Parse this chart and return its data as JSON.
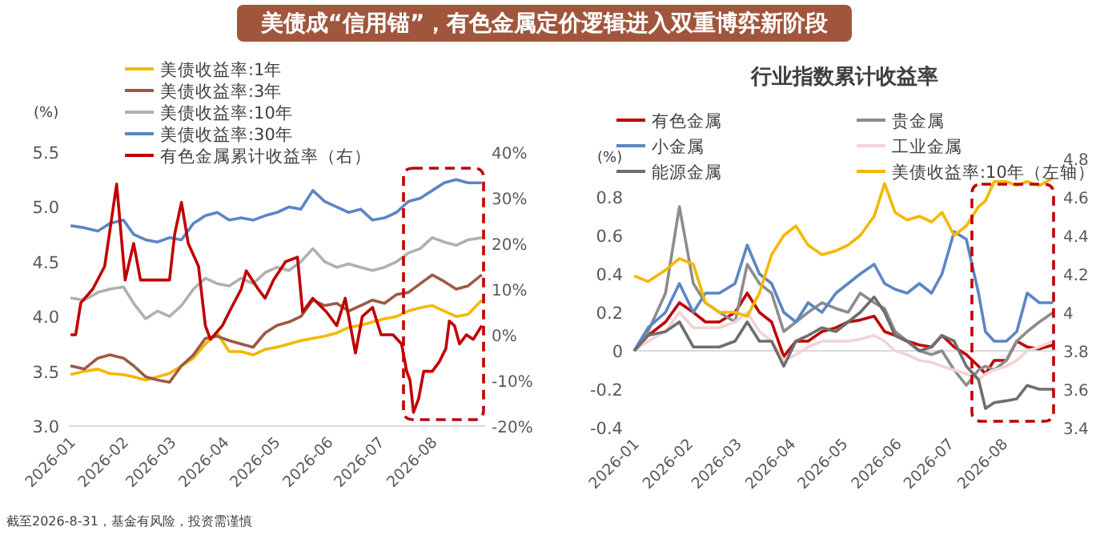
{
  "chart_data": [
    {
      "type": "line",
      "title": "美债成“信用锚”，有色金属定价逻辑进入双重博弈新阶段",
      "ylabel": "(%)",
      "legend": "top",
      "x": [
        "2026-01-02",
        "2026-01-10",
        "2026-01-18",
        "2026-01-25",
        "2026-02-02",
        "2026-02-08",
        "2026-02-15",
        "2026-02-22",
        "2026-03-01",
        "2026-03-08",
        "2026-03-15",
        "2026-03-22",
        "2026-03-29",
        "2026-04-05",
        "2026-04-12",
        "2026-04-19",
        "2026-04-26",
        "2026-05-03",
        "2026-05-10",
        "2026-05-17",
        "2026-05-24",
        "2026-05-31",
        "2026-06-07",
        "2026-06-14",
        "2026-06-21",
        "2026-06-28",
        "2026-07-05",
        "2026-07-12",
        "2026-07-19",
        "2026-07-26",
        "2026-08-02",
        "2026-08-09",
        "2026-08-16",
        "2026-08-23",
        "2026-08-31"
      ],
      "xlim": [
        "2026-01-01",
        "2026-09-02"
      ],
      "xticks": [
        "2026-01",
        "2026-02",
        "2026-03",
        "2026-04",
        "2026-05",
        "2026-06",
        "2026-07",
        "2026-08"
      ],
      "ylim": [
        3.0,
        5.5
      ],
      "yticks": [
        {
          "value": 3.0,
          "label": "3.0"
        },
        {
          "value": 3.5,
          "label": "3.5"
        },
        {
          "value": 4.0,
          "label": "4.0"
        },
        {
          "value": 4.5,
          "label": "4.5"
        },
        {
          "value": 5.0,
          "label": "5.0"
        },
        {
          "value": 5.5,
          "label": "5.5"
        }
      ],
      "y2lim": [
        -20,
        40
      ],
      "y2ticks": [
        {
          "value": -20,
          "label": "-20%"
        },
        {
          "value": -10,
          "label": "-10%"
        },
        {
          "value": 0,
          "label": "0%"
        },
        {
          "value": 10,
          "label": "10%"
        },
        {
          "value": 20,
          "label": "20%"
        },
        {
          "value": 30,
          "label": "30%"
        },
        {
          "value": 40,
          "label": "40%"
        }
      ],
      "series": [
        {
          "name": "美债收益率:1年",
          "color": "#f5b700",
          "values": [
            3.47,
            3.5,
            3.52,
            3.48,
            3.47,
            3.45,
            3.42,
            3.45,
            3.48,
            3.55,
            3.62,
            3.75,
            3.85,
            3.68,
            3.68,
            3.65,
            3.7,
            3.72,
            3.75,
            3.78,
            3.8,
            3.82,
            3.85,
            3.9,
            3.92,
            3.95,
            3.98,
            4.0,
            4.05,
            4.08,
            4.1,
            4.05,
            4.0,
            4.02,
            4.15
          ]
        },
        {
          "name": "美债收益率:3年",
          "color": "#9c5a45",
          "values": [
            3.55,
            3.52,
            3.62,
            3.65,
            3.62,
            3.55,
            3.45,
            3.42,
            3.4,
            3.55,
            3.65,
            3.8,
            3.82,
            3.78,
            3.75,
            3.72,
            3.85,
            3.92,
            3.95,
            4.0,
            4.15,
            4.1,
            4.12,
            4.05,
            4.1,
            4.15,
            4.12,
            4.2,
            4.22,
            4.3,
            4.38,
            4.32,
            4.25,
            4.28,
            4.38
          ]
        },
        {
          "name": "美债收益率:10年",
          "color": "#b0b0b0",
          "values": [
            4.17,
            4.15,
            4.22,
            4.25,
            4.27,
            4.12,
            3.98,
            4.05,
            4.0,
            4.1,
            4.25,
            4.35,
            4.3,
            4.28,
            4.35,
            4.3,
            4.4,
            4.45,
            4.42,
            4.5,
            4.62,
            4.5,
            4.45,
            4.48,
            4.45,
            4.42,
            4.45,
            4.5,
            4.58,
            4.62,
            4.72,
            4.68,
            4.65,
            4.7,
            4.72
          ]
        },
        {
          "name": "美债收益率:30年",
          "color": "#5b86c5",
          "values": [
            4.83,
            4.81,
            4.78,
            4.85,
            4.88,
            4.75,
            4.7,
            4.68,
            4.72,
            4.7,
            4.85,
            4.92,
            4.95,
            4.88,
            4.9,
            4.88,
            4.92,
            4.95,
            5.0,
            4.98,
            5.15,
            5.05,
            5.0,
            4.95,
            4.98,
            4.88,
            4.9,
            4.95,
            5.05,
            5.08,
            5.15,
            5.22,
            5.25,
            5.22,
            5.22
          ]
        },
        {
          "name": "有色金属累计收益率（右）",
          "color": "#c00000",
          "axis": "y2",
          "x": [
            "2026-01-02",
            "2026-01-05",
            "2026-01-08",
            "2026-01-15",
            "2026-01-22",
            "2026-01-29",
            "2026-02-03",
            "2026-02-08",
            "2026-02-12",
            "2026-02-20",
            "2026-03-01",
            "2026-03-04",
            "2026-03-08",
            "2026-03-12",
            "2026-03-18",
            "2026-03-22",
            "2026-03-25",
            "2026-04-01",
            "2026-04-05",
            "2026-04-12",
            "2026-04-15",
            "2026-04-22",
            "2026-04-26",
            "2026-05-01",
            "2026-05-08",
            "2026-05-15",
            "2026-05-18",
            "2026-05-24",
            "2026-06-01",
            "2026-06-07",
            "2026-06-12",
            "2026-06-18",
            "2026-06-22",
            "2026-06-28",
            "2026-07-03",
            "2026-07-10",
            "2026-07-15",
            "2026-07-18",
            "2026-07-20",
            "2026-07-22",
            "2026-07-25",
            "2026-07-28",
            "2026-08-02",
            "2026-08-06",
            "2026-08-10",
            "2026-08-12",
            "2026-08-15",
            "2026-08-18",
            "2026-08-22",
            "2026-08-26",
            "2026-08-31"
          ],
          "values": [
            0,
            0,
            7,
            10,
            15,
            33,
            12,
            20,
            12,
            12,
            12,
            22,
            29,
            20,
            15,
            2,
            -1,
            2,
            5,
            10,
            14,
            10,
            8,
            12,
            16,
            17,
            5,
            8,
            5,
            2,
            8,
            -4,
            4,
            6,
            0,
            0,
            -2,
            -8,
            -10,
            -17,
            -14,
            -8,
            -8,
            -6,
            -3,
            3,
            2,
            -2,
            0,
            -1,
            2
          ]
        }
      ],
      "annotations": [
        "截至2026-8-31，基金有风险，投资需谨慎"
      ]
    },
    {
      "type": "line",
      "title": "行业指数累计收益率",
      "ylabel": "(%)",
      "legend": "top",
      "x": [
        "2026-01-02",
        "2026-01-10",
        "2026-01-20",
        "2026-01-28",
        "2026-02-05",
        "2026-02-12",
        "2026-02-20",
        "2026-03-01",
        "2026-03-08",
        "2026-03-15",
        "2026-03-22",
        "2026-03-29",
        "2026-04-05",
        "2026-04-12",
        "2026-04-20",
        "2026-04-28",
        "2026-05-05",
        "2026-05-12",
        "2026-05-20",
        "2026-05-26",
        "2026-06-01",
        "2026-06-08",
        "2026-06-15",
        "2026-06-22",
        "2026-06-28",
        "2026-07-05",
        "2026-07-12",
        "2026-07-19",
        "2026-07-23",
        "2026-07-28",
        "2026-08-04",
        "2026-08-10",
        "2026-08-16",
        "2026-08-23",
        "2026-08-31"
      ],
      "xlim": [
        "2026-01-01",
        "2026-09-02"
      ],
      "xticks": [
        "2026-01",
        "2026-02",
        "2026-03",
        "2026-04",
        "2026-05",
        "2026-06",
        "2026-07",
        "2026-08"
      ],
      "ylim": [
        -0.4,
        0.8
      ],
      "yticks": [
        -0.4,
        -0.2,
        0,
        0.2,
        0.4,
        0.6,
        0.8
      ],
      "y2lim": [
        3.4,
        4.8
      ],
      "y2ticks": [
        3.4,
        3.6,
        3.8,
        4.0,
        4.2,
        4.4,
        4.6,
        4.8
      ],
      "series": [
        {
          "name": "有色金属",
          "color": "#c00000",
          "values": [
            0,
            0.08,
            0.15,
            0.25,
            0.2,
            0.15,
            0.15,
            0.2,
            0.3,
            0.2,
            0.15,
            -0.03,
            0.05,
            0.05,
            0.1,
            0.12,
            0.15,
            0.16,
            0.18,
            0.1,
            0.08,
            0.05,
            0.03,
            0.02,
            0.08,
            0.02,
            -0.02,
            -0.08,
            -0.12,
            -0.05,
            -0.05,
            0.05,
            0.02,
            0.01,
            0.03
          ]
        },
        {
          "name": "贵金属",
          "color": "#8c8c8c",
          "values": [
            0,
            0.1,
            0.3,
            0.75,
            0.35,
            0.25,
            0.2,
            0.15,
            0.45,
            0.35,
            0.3,
            0.1,
            0.15,
            0.2,
            0.25,
            0.22,
            0.2,
            0.3,
            0.25,
            0.22,
            0.1,
            0.05,
            0.0,
            -0.02,
            0.0,
            -0.1,
            -0.18,
            -0.1,
            -0.08,
            -0.1,
            -0.05,
            0.05,
            0.1,
            0.15,
            0.2
          ]
        },
        {
          "name": "小金属",
          "color": "#5b86c5",
          "values": [
            0,
            0.12,
            0.2,
            0.35,
            0.2,
            0.3,
            0.3,
            0.35,
            0.55,
            0.4,
            0.35,
            0.2,
            0.15,
            0.25,
            0.2,
            0.3,
            0.35,
            0.4,
            0.45,
            0.35,
            0.32,
            0.3,
            0.35,
            0.3,
            0.4,
            0.62,
            0.58,
            0.3,
            0.1,
            0.05,
            0.05,
            0.1,
            0.3,
            0.25,
            0.25
          ]
        },
        {
          "name": "工业金属",
          "color": "#f2d4d4",
          "values": [
            0,
            0.05,
            0.1,
            0.2,
            0.12,
            0.12,
            0.12,
            0.15,
            0.2,
            0.1,
            0.05,
            -0.05,
            -0.02,
            0.02,
            0.05,
            0.05,
            0.05,
            0.06,
            0.08,
            0.05,
            0.0,
            -0.02,
            -0.05,
            -0.06,
            -0.08,
            -0.1,
            -0.12,
            -0.15,
            -0.12,
            -0.1,
            -0.08,
            -0.05,
            0.0,
            0.02,
            0.05
          ]
        },
        {
          "name": "能源金属",
          "color": "#6e6e6e",
          "values": [
            0,
            0.08,
            0.1,
            0.15,
            0.02,
            0.02,
            0.02,
            0.05,
            0.15,
            0.05,
            0.05,
            -0.08,
            0.05,
            0.08,
            0.12,
            0.1,
            0.15,
            0.2,
            0.28,
            0.2,
            0.08,
            0.05,
            0.0,
            0.02,
            0.08,
            0.05,
            -0.08,
            -0.15,
            -0.3,
            -0.27,
            -0.26,
            -0.25,
            -0.18,
            -0.2,
            -0.2
          ]
        },
        {
          "name": "美债收益率:10年（左轴）",
          "color": "#f5b700",
          "axis": "y2",
          "values": [
            4.19,
            4.16,
            4.22,
            4.28,
            4.25,
            4.05,
            4.0,
            4.0,
            3.98,
            4.1,
            4.3,
            4.4,
            4.45,
            4.35,
            4.3,
            4.32,
            4.35,
            4.4,
            4.5,
            4.67,
            4.52,
            4.48,
            4.5,
            4.47,
            4.52,
            4.4,
            4.45,
            4.55,
            4.58,
            4.68,
            4.68,
            4.66,
            4.68,
            4.66,
            4.7
          ]
        }
      ]
    }
  ]
}
